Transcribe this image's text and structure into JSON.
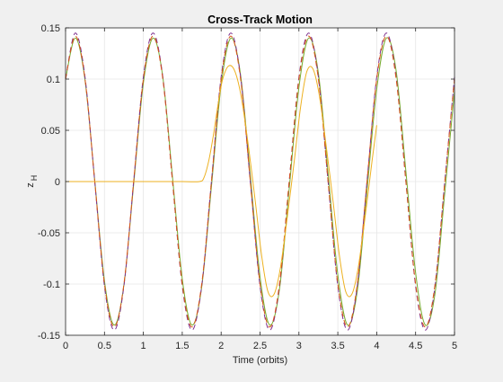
{
  "figure": {
    "background": "#f0f0f0",
    "axes_background": "#ffffff"
  },
  "chart_data": {
    "type": "line",
    "title": "Cross-Track Motion",
    "xlabel": "Time (orbits)",
    "ylabel_main": "z",
    "ylabel_sub": "H",
    "xlim": [
      0,
      5
    ],
    "ylim": [
      -0.15,
      0.15
    ],
    "xticks": [
      0,
      0.5,
      1,
      1.5,
      2,
      2.5,
      3,
      3.5,
      4,
      4.5,
      5
    ],
    "xtick_labels": [
      "0",
      "0.5",
      "1",
      "1.5",
      "2",
      "2.5",
      "3",
      "3.5",
      "4",
      "4.5",
      "5"
    ],
    "yticks": [
      -0.15,
      -0.1,
      -0.05,
      0,
      0.05,
      0.1,
      0.15
    ],
    "ytick_labels": [
      "-0.15",
      "-0.1",
      "-0.05",
      "0",
      "0.05",
      "0.1",
      "0.15"
    ],
    "grid": true,
    "series": [
      {
        "color": "#77ac30",
        "style": "solid",
        "x": [
          0,
          0.125,
          0.25,
          0.375,
          0.5,
          0.625,
          0.75,
          0.875,
          1.0,
          1.125,
          1.25,
          1.375,
          1.5,
          1.625,
          1.75,
          1.875,
          2.0,
          2.125,
          2.25,
          2.375,
          2.5,
          2.625,
          2.75,
          2.875,
          3.0,
          3.125,
          3.25,
          3.375,
          3.5,
          3.625,
          3.75,
          3.875,
          4.0,
          4.125,
          4.25,
          4.375,
          4.5,
          4.625,
          4.75,
          4.875,
          5.0
        ],
        "y": [
          0.1,
          0.14,
          0.099,
          0.001,
          -0.097,
          -0.14,
          -0.101,
          -0.003,
          0.096,
          0.14,
          0.102,
          0.004,
          -0.095,
          -0.14,
          -0.103,
          -0.005,
          0.094,
          0.14,
          0.104,
          0.006,
          -0.093,
          -0.14,
          -0.105,
          -0.007,
          0.092,
          0.14,
          0.106,
          0.008,
          -0.091,
          -0.14,
          -0.107,
          -0.009,
          0.09,
          0.14,
          0.108,
          0.01,
          -0.089,
          -0.14,
          -0.109,
          -0.011,
          0.088
        ]
      },
      {
        "color": "#7e2f8e",
        "style": "dashed",
        "x": [
          0,
          0.125,
          0.25,
          0.375,
          0.5,
          0.625,
          0.75,
          0.875,
          1.0,
          1.125,
          1.25,
          1.375,
          1.5,
          1.625,
          1.75,
          1.875,
          2.0,
          2.125,
          2.25,
          2.375,
          2.5,
          2.625,
          2.75,
          2.875,
          3.0,
          3.125,
          3.25,
          3.375,
          3.5,
          3.625,
          3.75,
          3.875,
          4.0,
          4.125,
          4.25,
          4.375,
          4.5,
          4.625,
          4.75,
          4.875,
          5.0
        ],
        "y": [
          0.1,
          0.145,
          0.102,
          0.0,
          -0.102,
          -0.145,
          -0.102,
          0.0,
          0.102,
          0.145,
          0.102,
          0.0,
          -0.102,
          -0.145,
          -0.102,
          0.0,
          0.102,
          0.145,
          0.102,
          0.0,
          -0.102,
          -0.145,
          -0.102,
          0.0,
          0.102,
          0.145,
          0.102,
          0.0,
          -0.102,
          -0.145,
          -0.102,
          0.0,
          0.102,
          0.145,
          0.102,
          0.0,
          -0.102,
          -0.145,
          -0.102,
          0.0,
          0.102
        ]
      },
      {
        "color": "#d95319",
        "style": "dashed",
        "x": [
          0,
          0.125,
          0.25,
          0.375,
          0.5,
          0.625,
          0.75,
          0.875,
          1.0,
          1.125,
          1.25,
          1.375,
          1.5,
          1.625,
          1.75,
          1.875,
          2.0,
          2.125,
          2.25,
          2.375,
          2.5,
          2.625,
          2.75,
          2.875,
          3.0,
          3.125,
          3.25,
          3.375,
          3.5,
          3.625,
          3.75,
          3.875,
          4.0,
          4.125,
          4.25,
          4.375,
          4.5,
          4.625,
          4.75,
          4.875,
          5.0
        ],
        "y": [
          0.1,
          0.142,
          0.1,
          0.0,
          -0.1,
          -0.142,
          -0.1,
          0.0,
          0.1,
          0.142,
          0.1,
          0.0,
          -0.1,
          -0.142,
          -0.1,
          0.0,
          0.1,
          0.142,
          0.1,
          0.0,
          -0.1,
          -0.142,
          -0.1,
          0.0,
          0.1,
          0.142,
          0.1,
          0.0,
          -0.1,
          -0.142,
          -0.1,
          0.0,
          0.1,
          0.142,
          0.1,
          0.0,
          -0.1,
          -0.142,
          -0.1,
          0.0,
          0.1
        ]
      },
      {
        "color": "#edb120",
        "style": "solid",
        "x": [
          0,
          0.5,
          1.0,
          1.5,
          1.72,
          1.78,
          1.84,
          1.9,
          1.96,
          2.02,
          2.1,
          2.18,
          2.26,
          2.35,
          2.44,
          2.52,
          2.6,
          2.68,
          2.76,
          2.85,
          2.94,
          3.02,
          3.1,
          3.18,
          3.26,
          3.35,
          3.44,
          3.52,
          3.6,
          3.68,
          3.76,
          3.85,
          3.94,
          4.0
        ],
        "y": [
          0,
          0,
          0,
          0,
          0,
          0.004,
          0.02,
          0.045,
          0.075,
          0.1,
          0.113,
          0.107,
          0.082,
          0.035,
          -0.02,
          -0.072,
          -0.107,
          -0.11,
          -0.085,
          -0.035,
          0.02,
          0.072,
          0.107,
          0.11,
          0.085,
          0.035,
          -0.02,
          -0.072,
          -0.107,
          -0.11,
          -0.085,
          -0.035,
          0.02,
          0.055
        ]
      }
    ]
  }
}
